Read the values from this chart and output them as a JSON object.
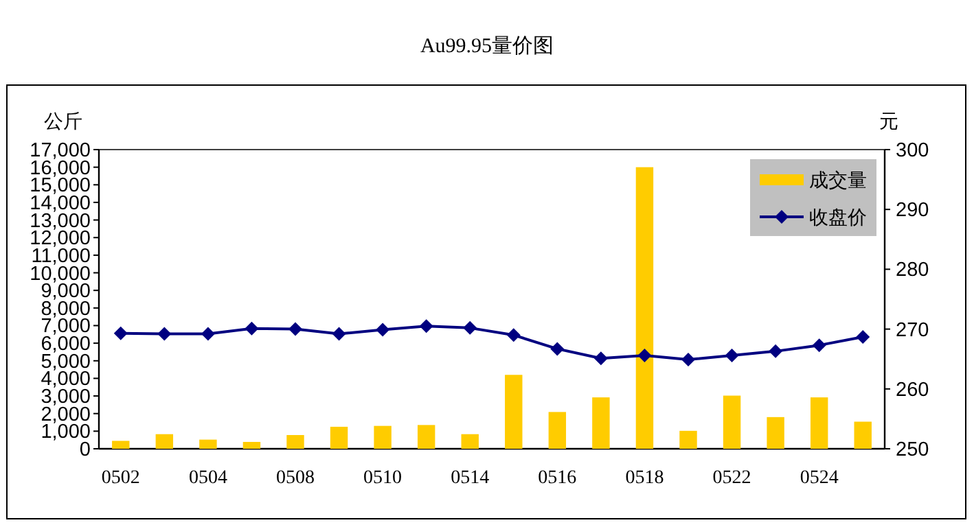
{
  "chart_data": {
    "type": "bar",
    "title": "Au99.95量价图",
    "ylabel": "公斤",
    "y2label": "元",
    "categories": [
      "0502",
      null,
      "0504",
      null,
      "0508",
      null,
      "0510",
      null,
      "0514",
      null,
      "0516",
      null,
      "0518",
      null,
      "0522",
      null,
      "0524",
      null
    ],
    "series": [
      {
        "name": "成交量",
        "color": "#ffcc00",
        "values": [
          450,
          830,
          520,
          390,
          780,
          1250,
          1300,
          1350,
          830,
          4200,
          2090,
          2920,
          16000,
          1020,
          3020,
          1800,
          2920,
          1540
        ]
      },
      {
        "name": "收盘价",
        "type": "line",
        "axis": "y2",
        "color": "#000080",
        "marker": "diamond",
        "values": [
          269.3,
          269.2,
          269.2,
          270.1,
          270.0,
          269.2,
          269.9,
          270.5,
          270.2,
          269.0,
          266.7,
          265.1,
          265.6,
          264.9,
          265.6,
          266.3,
          267.3,
          268.7
        ]
      }
    ],
    "ylim": [
      0,
      17000
    ],
    "yticks": [
      {
        "value": 0,
        "label": "0"
      },
      {
        "value": 1000,
        "label": "1,000"
      },
      {
        "value": 2000,
        "label": "2,000"
      },
      {
        "value": 3000,
        "label": "3,000"
      },
      {
        "value": 4000,
        "label": "4,000"
      },
      {
        "value": 5000,
        "label": "5,000"
      },
      {
        "value": 6000,
        "label": "6,000"
      },
      {
        "value": 7000,
        "label": "7,000"
      },
      {
        "value": 8000,
        "label": "8,000"
      },
      {
        "value": 9000,
        "label": "9,000"
      },
      {
        "value": 10000,
        "label": "10,000"
      },
      {
        "value": 11000,
        "label": "11,000"
      },
      {
        "value": 12000,
        "label": "12,000"
      },
      {
        "value": 13000,
        "label": "13,000"
      },
      {
        "value": 14000,
        "label": "14,000"
      },
      {
        "value": 15000,
        "label": "15,000"
      },
      {
        "value": 16000,
        "label": "16,000"
      },
      {
        "value": 17000,
        "label": "17,000"
      }
    ],
    "y2lim": [
      250,
      300
    ],
    "y2ticks": [
      250,
      260,
      270,
      280,
      290,
      300
    ],
    "legend": "top right",
    "grid": false
  }
}
